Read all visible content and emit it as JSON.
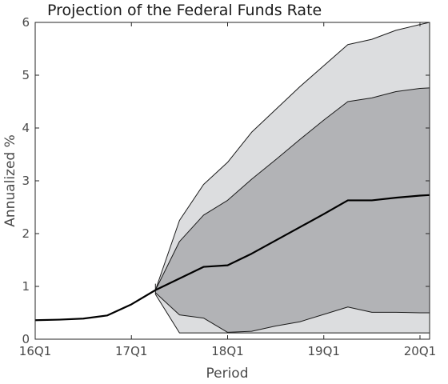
{
  "chart_data": {
    "type": "area",
    "title": "Projection of the Federal Funds Rate",
    "xlabel": "Period",
    "ylabel": "Annualized %",
    "ylim": [
      0,
      6
    ],
    "xlim": [
      0,
      16.4
    ],
    "grid": false,
    "x_ticks": [
      {
        "x": 0,
        "label": "16Q1"
      },
      {
        "x": 4,
        "label": "17Q1"
      },
      {
        "x": 8,
        "label": "18Q1"
      },
      {
        "x": 12,
        "label": "19Q1"
      },
      {
        "x": 16,
        "label": "20Q1"
      }
    ],
    "y_ticks": [
      {
        "y": 0,
        "label": "0"
      },
      {
        "y": 1,
        "label": "1"
      },
      {
        "y": 2,
        "label": "2"
      },
      {
        "y": 3,
        "label": "3"
      },
      {
        "y": 4,
        "label": "4"
      },
      {
        "y": 5,
        "label": "5"
      },
      {
        "y": 6,
        "label": "6"
      }
    ],
    "colors": {
      "outer_band": "#dcdddf",
      "inner_band": "#b2b3b6",
      "median_line": "#000000",
      "band_edge": "#1a1a1a"
    },
    "series": [
      {
        "role": "history",
        "x": [
          0,
          1,
          2,
          3,
          4,
          5
        ],
        "values": [
          0.36,
          0.37,
          0.39,
          0.45,
          0.66,
          0.93
        ]
      },
      {
        "role": "median",
        "x": [
          5,
          6,
          7,
          8,
          9,
          10,
          11,
          12,
          13,
          14,
          15,
          16,
          16.4
        ],
        "values": [
          0.93,
          1.15,
          1.37,
          1.4,
          1.62,
          1.87,
          2.12,
          2.37,
          2.63,
          2.63,
          2.68,
          2.72,
          2.73
        ]
      },
      {
        "role": "outer-upper",
        "x": [
          5,
          6,
          7,
          8,
          9,
          10,
          11,
          12,
          13,
          14,
          15,
          16,
          16.4
        ],
        "values": [
          0.93,
          2.25,
          2.93,
          3.35,
          3.92,
          4.35,
          4.78,
          5.18,
          5.58,
          5.68,
          5.85,
          5.96,
          6.0
        ]
      },
      {
        "role": "inner-upper",
        "x": [
          5,
          6,
          7,
          8,
          9,
          10,
          11,
          12,
          13,
          14,
          15,
          16,
          16.4
        ],
        "values": [
          0.93,
          1.85,
          2.35,
          2.63,
          3.03,
          3.4,
          3.78,
          4.15,
          4.5,
          4.57,
          4.69,
          4.75,
          4.76
        ]
      },
      {
        "role": "inner-lower",
        "x": [
          5,
          6,
          7,
          8,
          9,
          10,
          11,
          12,
          13,
          14,
          15,
          16,
          16.4
        ],
        "values": [
          0.88,
          0.46,
          0.4,
          0.13,
          0.15,
          0.25,
          0.33,
          0.47,
          0.61,
          0.51,
          0.51,
          0.5,
          0.5
        ]
      },
      {
        "role": "outer-lower",
        "x": [
          5,
          6,
          7,
          8,
          9,
          10,
          11,
          12,
          13,
          14,
          15,
          16,
          16.4
        ],
        "values": [
          0.85,
          0.12,
          0.12,
          0.12,
          0.12,
          0.12,
          0.12,
          0.12,
          0.12,
          0.12,
          0.12,
          0.12,
          0.12
        ]
      }
    ]
  }
}
